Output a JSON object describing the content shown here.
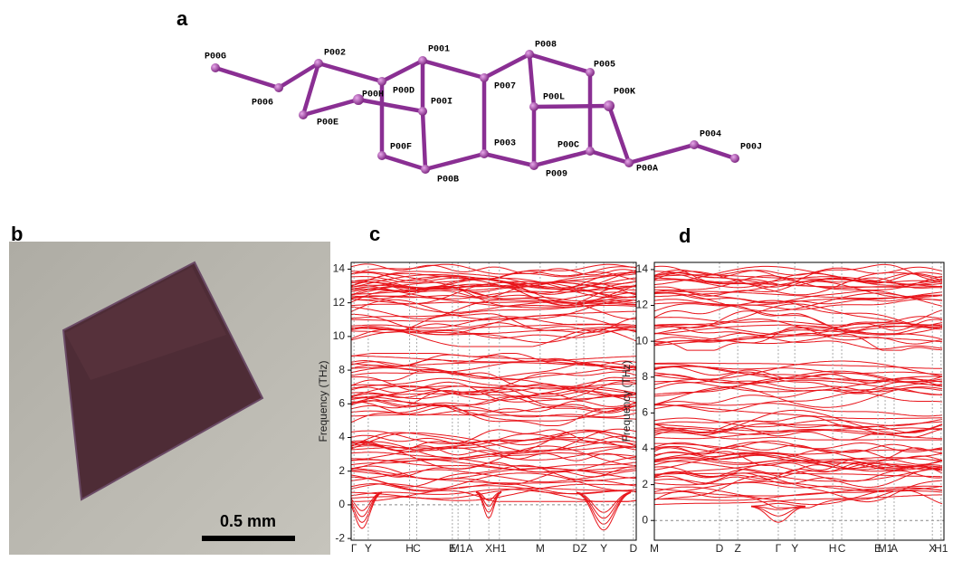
{
  "panel_a": {
    "label": "a",
    "atoms": [
      "P00G",
      "P006",
      "P002",
      "P00H",
      "P00E",
      "P00D",
      "P001",
      "P00I",
      "P00F",
      "P00B",
      "P007",
      "P003",
      "P008",
      "P00L",
      "P009",
      "P005",
      "P00K",
      "P00C",
      "P00A",
      "P004",
      "P00J"
    ]
  },
  "panel_b": {
    "label": "b",
    "scale_bar": "0.5 mm"
  },
  "panel_c": {
    "label": "c",
    "y_label": "Frequency (THz)",
    "ylim": [
      -2.1,
      14.4
    ],
    "yticks": [
      -2,
      0,
      2,
      4,
      6,
      8,
      10,
      12,
      14
    ],
    "kpoints": [
      "Γ",
      "Y",
      "H",
      "C",
      "E",
      "M1",
      "A",
      "X",
      "H1",
      "M",
      "D",
      "Z",
      "Y",
      "D"
    ]
  },
  "panel_d": {
    "label": "d",
    "y_label": "Frequency (THz)",
    "ylim": [
      -1.1,
      14.4
    ],
    "yticks": [
      0,
      2,
      4,
      6,
      8,
      10,
      12,
      14
    ],
    "kpoints": [
      "M",
      "D",
      "Z",
      "Γ",
      "Y",
      "H",
      "C",
      "E",
      "M1",
      "A",
      "X",
      "H1"
    ]
  }
}
